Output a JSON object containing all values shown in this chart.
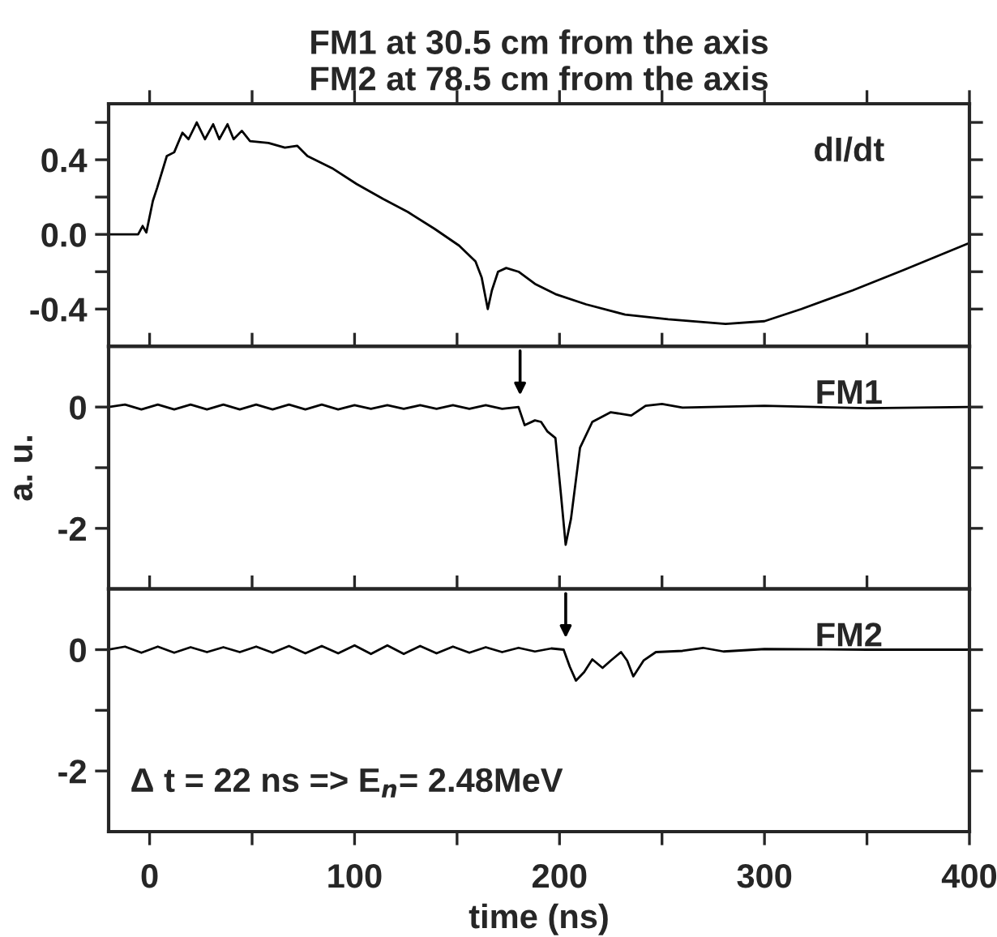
{
  "chart_data": [
    {
      "type": "line",
      "title": "FM1 at 30.5 cm from the axis\nFM2 at 78.5 cm from the axis",
      "tick_labels": "y",
      "legend": false,
      "xlim": [
        -20,
        400
      ],
      "ylim": [
        -0.6,
        0.7
      ],
      "xticks": [
        {
          "value": 0,
          "label": null
        },
        {
          "value": 50,
          "label": null
        },
        {
          "value": 100,
          "label": null
        },
        {
          "value": 150,
          "label": null
        },
        {
          "value": 200,
          "label": null
        },
        {
          "value": 250,
          "label": null
        },
        {
          "value": 300,
          "label": null
        },
        {
          "value": 350,
          "label": null
        },
        {
          "value": 400,
          "label": null
        }
      ],
      "yticks": [
        {
          "value": -0.4,
          "label": "-0.4"
        },
        {
          "value": -0.2,
          "label": null
        },
        {
          "value": 0,
          "label": "0.0"
        },
        {
          "value": 0.2,
          "label": null
        },
        {
          "value": 0.4,
          "label": "0.4"
        },
        {
          "value": 0.6,
          "label": null
        }
      ],
      "series": [
        {
          "name": "dI/dt",
          "color": "#000000",
          "x": [
            -20,
            -5.6,
            -3.4,
            -1.6,
            1.6,
            3.7,
            8.4,
            12,
            16,
            19,
            23,
            27,
            31,
            34,
            38,
            41,
            45,
            49,
            58,
            66,
            72,
            77,
            89,
            101,
            114,
            126,
            139,
            151,
            159,
            162,
            165,
            167,
            170,
            174,
            180,
            188,
            198,
            213,
            232,
            253,
            281,
            300,
            318,
            343,
            368,
            399
          ],
          "values": [
            0,
            0,
            0.045,
            0.01,
            0.18,
            0.25,
            0.42,
            0.44,
            0.545,
            0.51,
            0.6,
            0.51,
            0.59,
            0.51,
            0.59,
            0.51,
            0.555,
            0.5,
            0.49,
            0.465,
            0.475,
            0.42,
            0.355,
            0.27,
            0.19,
            0.12,
            0.03,
            -0.06,
            -0.145,
            -0.23,
            -0.4,
            -0.3,
            -0.2,
            -0.18,
            -0.2,
            -0.265,
            -0.32,
            -0.375,
            -0.43,
            -0.455,
            -0.48,
            -0.465,
            -0.4,
            -0.3,
            -0.19,
            -0.05
          ]
        }
      ]
    },
    {
      "type": "line",
      "ylabel": "a. u.",
      "tick_labels": "y",
      "legend": false,
      "xlim": [
        -20,
        400
      ],
      "ylim": [
        -3,
        1
      ],
      "xticks": [
        {
          "value": 0,
          "label": null
        },
        {
          "value": 50,
          "label": null
        },
        {
          "value": 100,
          "label": null
        },
        {
          "value": 150,
          "label": null
        },
        {
          "value": 200,
          "label": null
        },
        {
          "value": 250,
          "label": null
        },
        {
          "value": 300,
          "label": null
        },
        {
          "value": 350,
          "label": null
        },
        {
          "value": 400,
          "label": null
        }
      ],
      "yticks": [
        {
          "value": -2,
          "label": "-2"
        },
        {
          "value": -1,
          "label": null
        },
        {
          "value": 0,
          "label": "0"
        }
      ],
      "series": [
        {
          "name": "FM1",
          "color": "#000000",
          "x": [
            -20,
            -12,
            -4,
            4,
            12,
            20,
            28,
            36,
            44,
            52,
            60,
            68,
            76,
            84,
            92,
            100,
            108,
            116,
            124,
            132,
            140,
            148,
            156,
            164,
            172,
            180,
            183,
            188,
            191,
            194,
            198,
            200.6,
            203,
            205.6,
            210,
            216,
            225,
            235,
            242,
            250,
            260,
            300,
            350,
            399
          ],
          "values": [
            0,
            0.04,
            -0.04,
            0.04,
            -0.04,
            0.04,
            -0.04,
            0.04,
            -0.04,
            0.04,
            -0.04,
            0.04,
            -0.04,
            0.04,
            -0.04,
            0.03,
            -0.03,
            0.03,
            -0.03,
            0.03,
            -0.03,
            0.03,
            -0.03,
            0.03,
            -0.03,
            0,
            -0.3,
            -0.22,
            -0.245,
            -0.4,
            -0.51,
            -1.41,
            -2.27,
            -1.84,
            -0.67,
            -0.245,
            -0.085,
            -0.14,
            0.02,
            0.05,
            -0.01,
            0.02,
            -0.02,
            0
          ]
        }
      ]
    },
    {
      "type": "line",
      "xlabel": "time (ns)",
      "legend": false,
      "xlim": [
        -20,
        400
      ],
      "ylim": [
        -3,
        1
      ],
      "xticks": [
        {
          "value": 0,
          "label": "0"
        },
        {
          "value": 50,
          "label": null
        },
        {
          "value": 100,
          "label": "100"
        },
        {
          "value": 150,
          "label": null
        },
        {
          "value": 200,
          "label": "200"
        },
        {
          "value": 250,
          "label": null
        },
        {
          "value": 300,
          "label": "300"
        },
        {
          "value": 350,
          "label": null
        },
        {
          "value": 400,
          "label": "400"
        }
      ],
      "yticks": [
        {
          "value": -2,
          "label": "-2"
        },
        {
          "value": -1,
          "label": null
        },
        {
          "value": 0,
          "label": "0"
        }
      ],
      "annotations": [
        "Δ t = 22 ns => E$_{n}$= 2.48MeV"
      ],
      "series": [
        {
          "name": "FM2",
          "color": "#000000",
          "x": [
            -20,
            -12,
            -4,
            4,
            12,
            20,
            28,
            36,
            44,
            52,
            60,
            68,
            76,
            84,
            92,
            100,
            108,
            116,
            124,
            132,
            140,
            148,
            156,
            164,
            172,
            180,
            188,
            196,
            202,
            205,
            208,
            212,
            216,
            221,
            225,
            230,
            233,
            236,
            241,
            247,
            260,
            270,
            280,
            300,
            350,
            399
          ],
          "values": [
            0,
            0.05,
            -0.05,
            0.05,
            -0.05,
            0.04,
            -0.04,
            0.04,
            -0.04,
            0.05,
            -0.05,
            0.06,
            -0.06,
            0.06,
            -0.06,
            0.07,
            -0.07,
            0.07,
            -0.07,
            0.06,
            -0.06,
            0.05,
            -0.05,
            0.04,
            -0.04,
            0.03,
            -0.03,
            0.02,
            0,
            -0.28,
            -0.51,
            -0.37,
            -0.16,
            -0.3,
            -0.18,
            -0.04,
            -0.18,
            -0.44,
            -0.18,
            -0.04,
            -0.02,
            0.03,
            -0.03,
            0.01,
            0,
            0
          ]
        }
      ]
    }
  ]
}
